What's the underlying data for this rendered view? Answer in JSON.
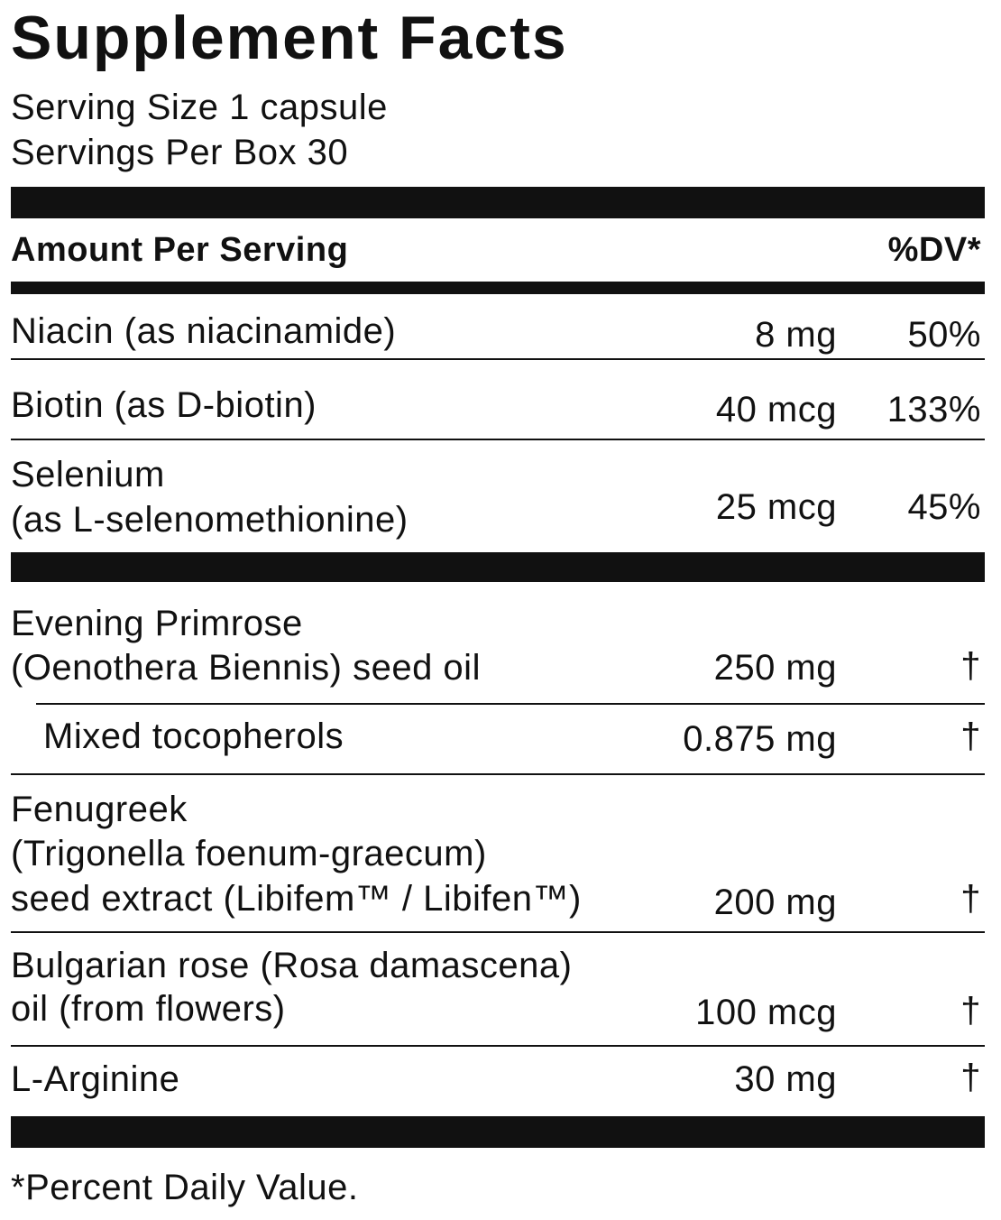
{
  "title": "Supplement Facts",
  "serving_size": "Serving Size 1 capsule",
  "servings_per": "Servings Per Box 30",
  "header": {
    "amount": "Amount Per Serving",
    "dv": "%DV*"
  },
  "rows": [
    {
      "name": [
        "Niacin (as niacinamide)"
      ],
      "amount": "8 mg",
      "dv": "50%"
    },
    {
      "name": [
        "Biotin (as D-biotin)"
      ],
      "amount": "40 mcg",
      "dv": "133%"
    },
    {
      "name": [
        "Selenium",
        "(as L-selenomethionine)"
      ],
      "amount": "25 mcg",
      "dv": "45%"
    },
    {
      "name": [
        "Evening Primrose",
        "(Oenothera Biennis) seed oil"
      ],
      "amount": "250 mg",
      "dv": "†"
    },
    {
      "name": [
        "Mixed tocopherols"
      ],
      "amount": "0.875 mg",
      "dv": "†"
    },
    {
      "name": [
        "Fenugreek",
        "(Trigonella foenum-graecum)",
        "seed extract (Libifem™ / Libifen™)"
      ],
      "amount": "200 mg",
      "dv": "†"
    },
    {
      "name": [
        "Bulgarian rose (Rosa damascena)",
        "oil (from flowers)"
      ],
      "amount": "100 mcg",
      "dv": "†"
    },
    {
      "name": [
        "L-Arginine"
      ],
      "amount": "30 mg",
      "dv": "†"
    }
  ],
  "footnote": "*Percent Daily Value."
}
